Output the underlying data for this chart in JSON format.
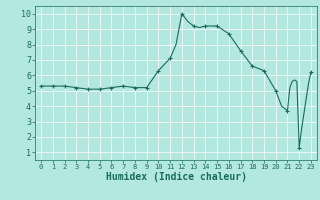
{
  "title": "",
  "xlabel": "Humidex (Indice chaleur)",
  "ylabel": "",
  "background_color": "#b2e8e0",
  "grid_color": "#ffffff",
  "line_color": "#1a6b5a",
  "marker_color": "#1a6b5a",
  "xlim": [
    -0.5,
    23.5
  ],
  "ylim": [
    0.5,
    10.5
  ],
  "yticks": [
    1,
    2,
    3,
    4,
    5,
    6,
    7,
    8,
    9,
    10
  ],
  "xticks": [
    0,
    1,
    2,
    3,
    4,
    5,
    6,
    7,
    8,
    9,
    10,
    11,
    12,
    13,
    14,
    15,
    16,
    17,
    18,
    19,
    20,
    21,
    22,
    23
  ],
  "x": [
    0,
    1,
    2,
    3,
    4,
    5,
    6,
    7,
    8,
    9,
    10,
    11,
    11.5,
    12,
    12.5,
    13,
    13.5,
    14,
    15,
    16,
    17,
    18,
    19,
    20,
    20.5,
    21,
    21.2,
    21.4,
    21.6,
    21.8,
    22,
    22.2,
    22.5,
    22.8,
    23
  ],
  "y": [
    5.3,
    5.3,
    5.3,
    5.2,
    5.1,
    5.1,
    5.2,
    5.3,
    5.2,
    5.2,
    6.3,
    7.1,
    8.0,
    10.0,
    9.5,
    9.2,
    9.1,
    9.2,
    9.2,
    8.7,
    7.6,
    6.6,
    6.3,
    5.0,
    4.0,
    3.7,
    5.2,
    5.6,
    5.7,
    5.6,
    1.3,
    2.5,
    4.0,
    5.5,
    6.2
  ],
  "marker_x": [
    0,
    1,
    2,
    3,
    4,
    5,
    6,
    7,
    8,
    9,
    10,
    11,
    12,
    13,
    14,
    15,
    16,
    17,
    18,
    19,
    20,
    21,
    22,
    23
  ],
  "marker_y": [
    5.3,
    5.3,
    5.3,
    5.2,
    5.1,
    5.1,
    5.2,
    5.3,
    5.2,
    5.2,
    6.3,
    7.1,
    10.0,
    9.2,
    9.2,
    9.2,
    8.7,
    7.6,
    6.6,
    6.3,
    5.0,
    3.7,
    1.3,
    6.2
  ],
  "xlabel_fontsize": 7,
  "tick_fontsize": 6
}
